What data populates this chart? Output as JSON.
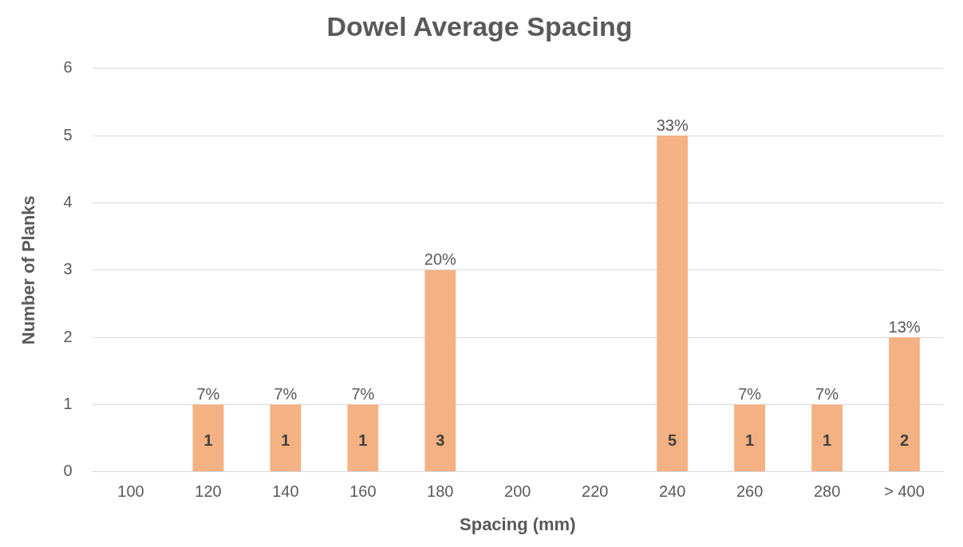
{
  "chart_data": {
    "type": "bar",
    "title": "Dowel Average Spacing",
    "xlabel": "Spacing (mm)",
    "ylabel": "Number of Planks",
    "categories": [
      "100",
      "120",
      "140",
      "160",
      "180",
      "200",
      "220",
      "240",
      "260",
      "280",
      "> 400"
    ],
    "values": [
      0,
      1,
      1,
      1,
      3,
      0,
      0,
      5,
      1,
      1,
      2
    ],
    "value_labels": [
      null,
      "1",
      "1",
      "1",
      "3",
      null,
      null,
      "5",
      "1",
      "1",
      "2"
    ],
    "annotations": [
      {
        "text": "7%",
        "x": "120",
        "y": 1
      },
      {
        "text": "7%",
        "x": "140",
        "y": 1
      },
      {
        "text": "7%",
        "x": "160",
        "y": 1
      },
      {
        "text": "20%",
        "x": "180",
        "y": 3
      },
      {
        "text": "33%",
        "x": "240",
        "y": 5
      },
      {
        "text": "7%",
        "x": "260",
        "y": 1
      },
      {
        "text": "7%",
        "x": "280",
        "y": 1
      },
      {
        "text": "13%",
        "x": "> 400",
        "y": 2
      }
    ],
    "color": "#f4b183",
    "ylim": [
      0,
      6
    ],
    "yticks": [
      0,
      1,
      2,
      3,
      4,
      5,
      6
    ],
    "grid": "y",
    "legend": false
  }
}
